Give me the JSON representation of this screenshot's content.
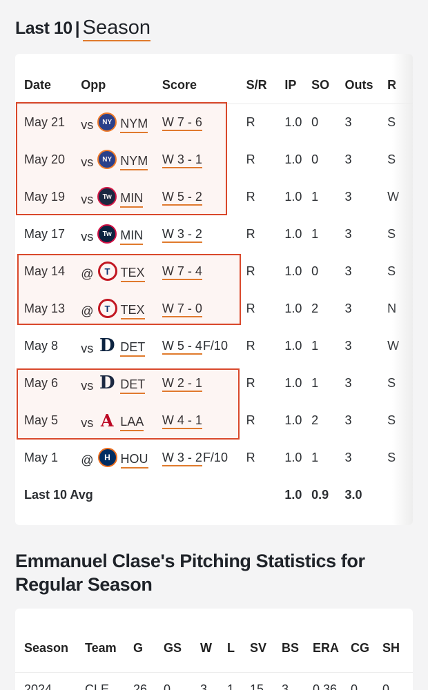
{
  "header": {
    "last10": "Last 10",
    "separator": "|",
    "season": "Season"
  },
  "game_log": {
    "columns": [
      "Date",
      "Opp",
      "Score",
      "S/R",
      "IP",
      "SO",
      "Outs",
      "R"
    ],
    "rows": [
      {
        "date": "May 21",
        "prefix": "vs",
        "logo": "mets-logo",
        "opp": "NYM",
        "score": "W 7 - 6",
        "extra": "",
        "sr": "R",
        "ip": "1.0",
        "so": "0",
        "outs": "3",
        "r": "S"
      },
      {
        "date": "May 20",
        "prefix": "vs",
        "logo": "mets-logo",
        "opp": "NYM",
        "score": "W 3 - 1",
        "extra": "",
        "sr": "R",
        "ip": "1.0",
        "so": "0",
        "outs": "3",
        "r": "S"
      },
      {
        "date": "May 19",
        "prefix": "vs",
        "logo": "twins-logo",
        "opp": "MIN",
        "score": "W 5 - 2",
        "extra": "",
        "sr": "R",
        "ip": "1.0",
        "so": "1",
        "outs": "3",
        "r": "W"
      },
      {
        "date": "May 17",
        "prefix": "vs",
        "logo": "twins-logo",
        "opp": "MIN",
        "score": "W 3 - 2",
        "extra": "",
        "sr": "R",
        "ip": "1.0",
        "so": "1",
        "outs": "3",
        "r": "S"
      },
      {
        "date": "May 14",
        "prefix": "@",
        "logo": "rangers-logo",
        "opp": "TEX",
        "score": "W 7 - 4",
        "extra": "",
        "sr": "R",
        "ip": "1.0",
        "so": "0",
        "outs": "3",
        "r": "S"
      },
      {
        "date": "May 13",
        "prefix": "@",
        "logo": "rangers-logo",
        "opp": "TEX",
        "score": "W 7 - 0",
        "extra": "",
        "sr": "R",
        "ip": "1.0",
        "so": "2",
        "outs": "3",
        "r": "N"
      },
      {
        "date": "May 8",
        "prefix": "vs",
        "logo": "tigers-logo",
        "opp": "DET",
        "score": "W 5 - 4",
        "extra": "F/10",
        "sr": "R",
        "ip": "1.0",
        "so": "1",
        "outs": "3",
        "r": "W"
      },
      {
        "date": "May 6",
        "prefix": "vs",
        "logo": "tigers-logo",
        "opp": "DET",
        "score": "W 2 - 1",
        "extra": "",
        "sr": "R",
        "ip": "1.0",
        "so": "1",
        "outs": "3",
        "r": "S"
      },
      {
        "date": "May 5",
        "prefix": "vs",
        "logo": "angels-logo",
        "opp": "LAA",
        "score": "W 4 - 1",
        "extra": "",
        "sr": "R",
        "ip": "1.0",
        "so": "2",
        "outs": "3",
        "r": "S"
      },
      {
        "date": "May 1",
        "prefix": "@",
        "logo": "astros-logo",
        "opp": "HOU",
        "score": "W 3 - 2",
        "extra": "F/10",
        "sr": "R",
        "ip": "1.0",
        "so": "1",
        "outs": "3",
        "r": "S"
      }
    ],
    "average": {
      "label": "Last 10 Avg",
      "ip": "1.0",
      "so": "0.9",
      "outs": "3.0"
    }
  },
  "pitching_stats": {
    "title": "Emmanuel Clase's Pitching Statistics for Regular Season",
    "columns": [
      "Season",
      "Team",
      "G",
      "GS",
      "W",
      "L",
      "SV",
      "BS",
      "ERA",
      "CG",
      "SH"
    ],
    "rows": [
      {
        "season": "2024",
        "team": "CLE",
        "g": "26",
        "gs": "0",
        "w": "3",
        "l": "1",
        "sv": "15",
        "bs": "3",
        "era": "0.36",
        "cg": "0",
        "sh": "0"
      }
    ]
  },
  "colors": {
    "accent": "#e07a2c",
    "highlight": "#d9482b"
  }
}
